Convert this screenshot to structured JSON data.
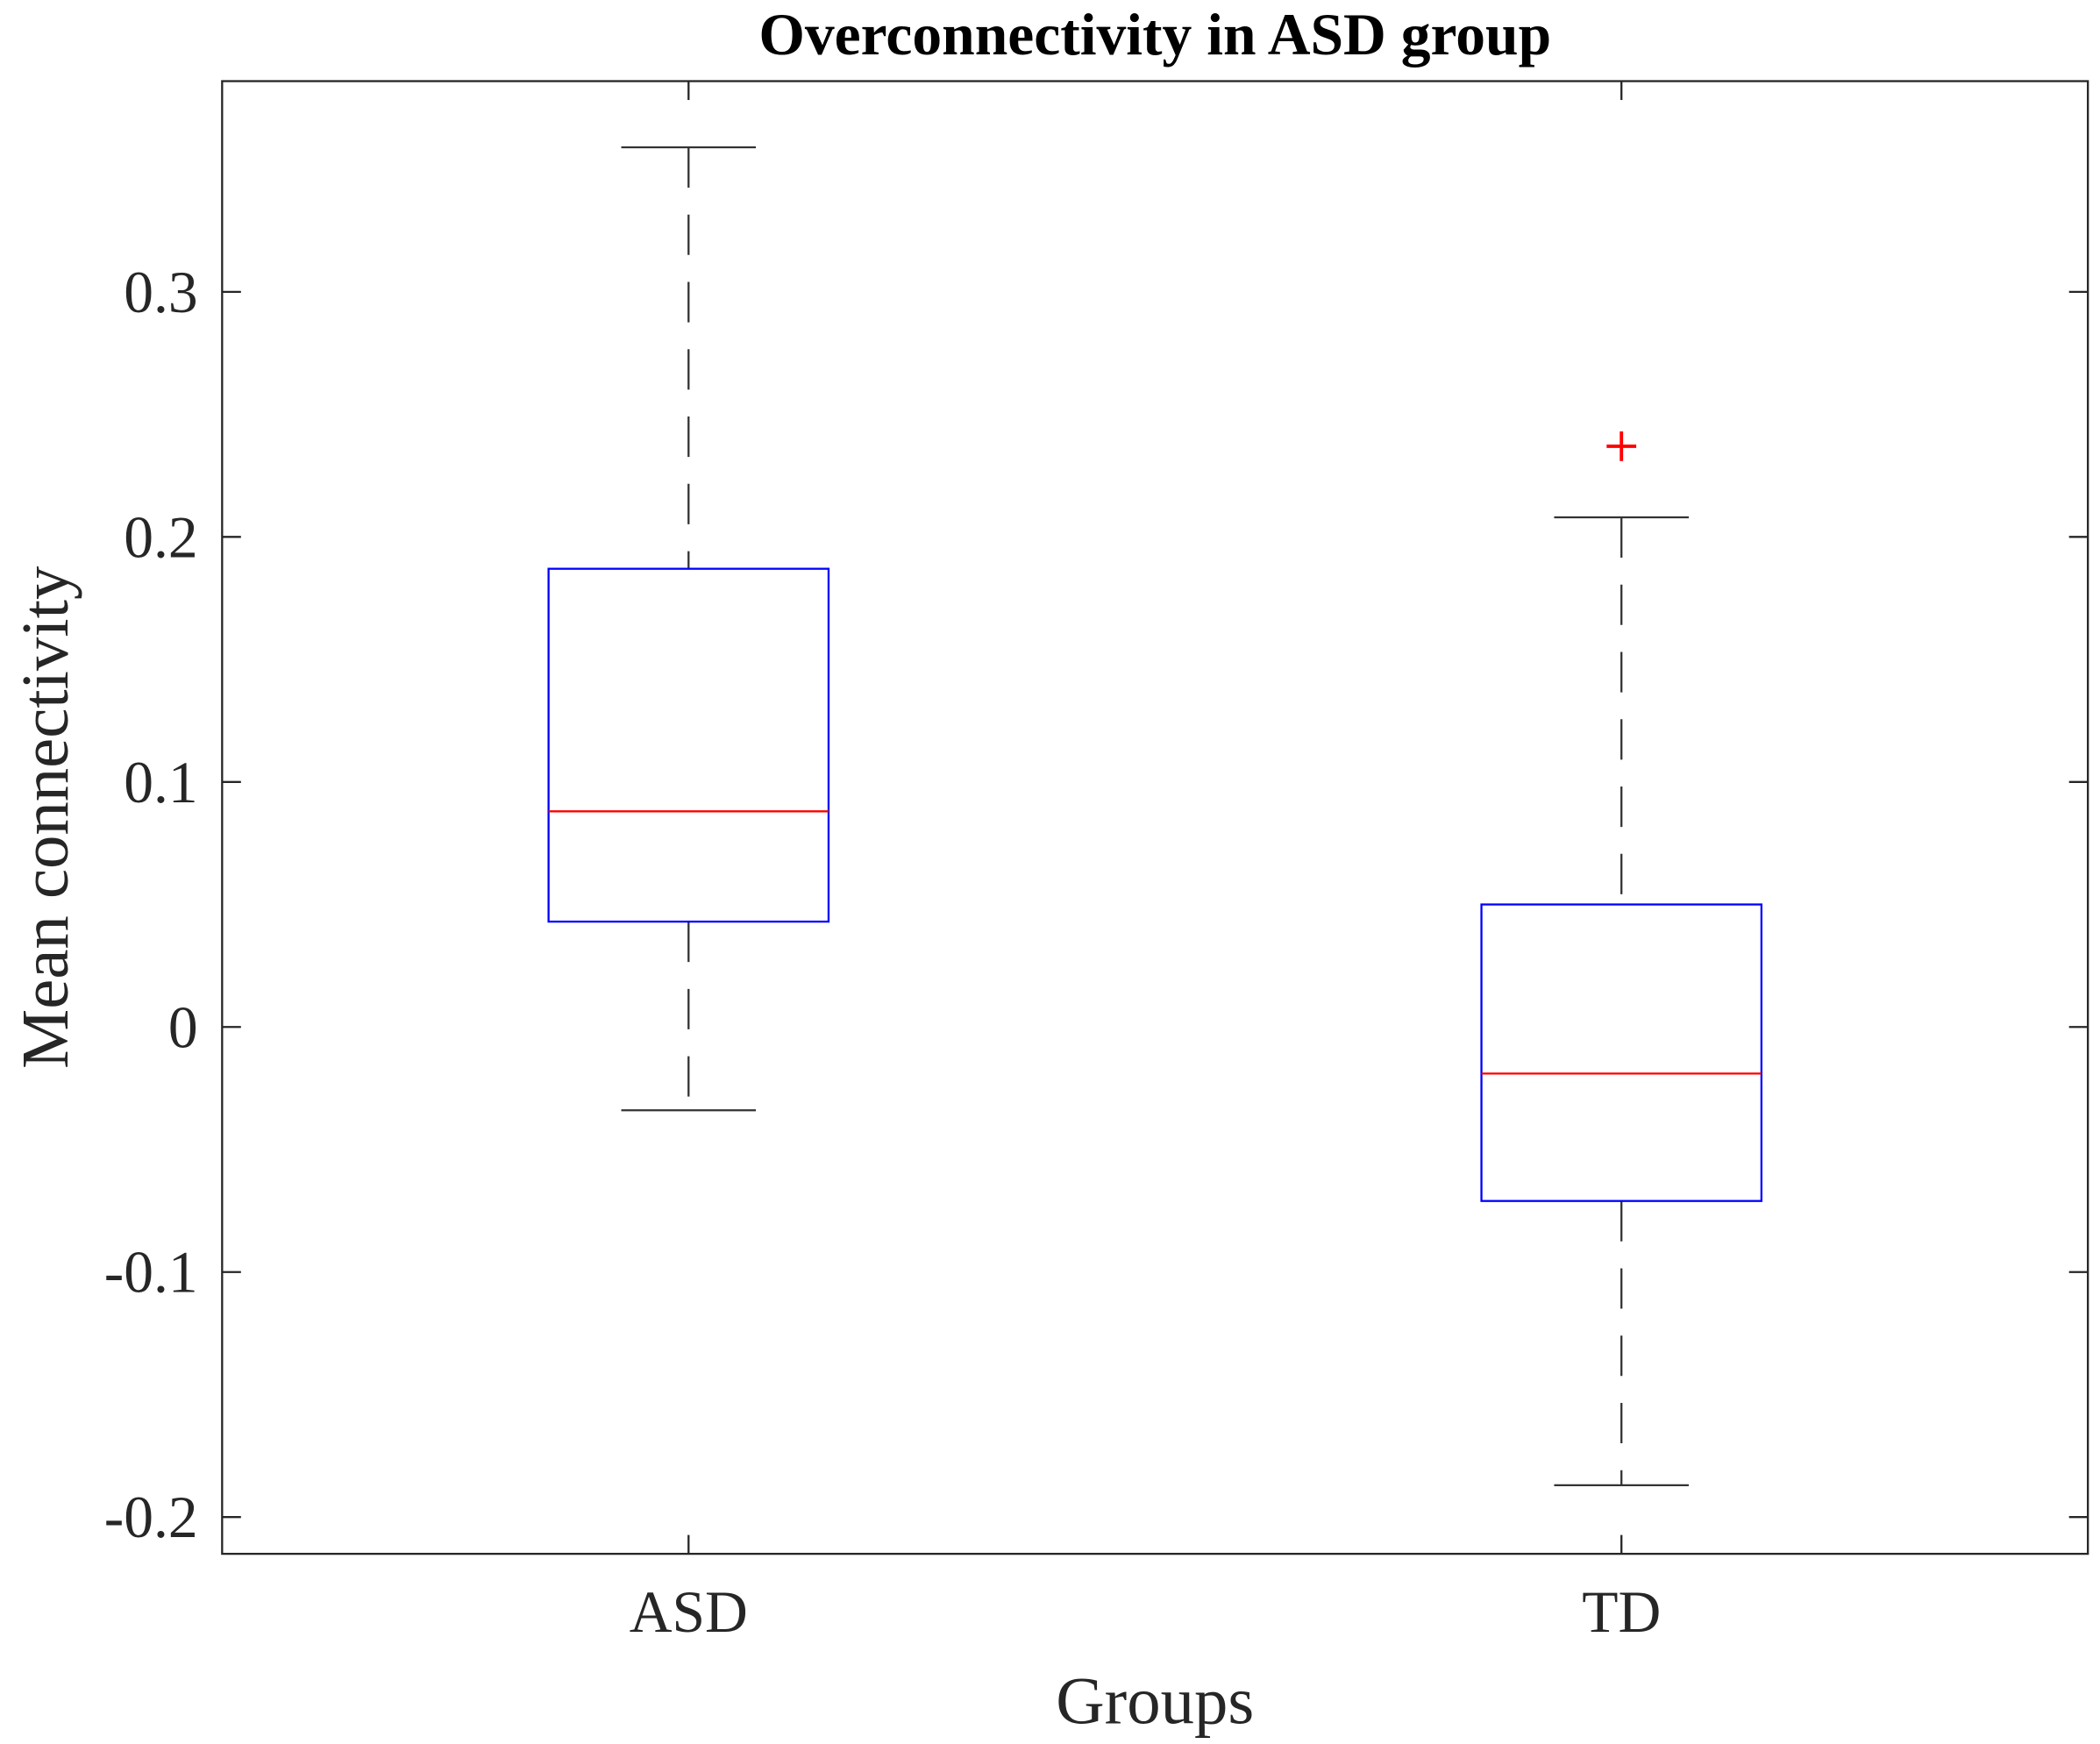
{
  "chart_data": {
    "type": "boxplot",
    "title": "Overconnectivity in ASD group",
    "xlabel": "Groups",
    "ylabel": "Mean connectivity",
    "categories": [
      "ASD",
      "TD"
    ],
    "ylim": [
      -0.215,
      0.386
    ],
    "yticks": [
      -0.2,
      -0.1,
      0,
      0.1,
      0.2,
      0.3
    ],
    "ytick_labels": [
      "-0.2",
      "-0.1",
      "0",
      "0.1",
      "0.2",
      "0.3"
    ],
    "grid": false,
    "boxes": [
      {
        "category": "ASD",
        "whisker_low": -0.034,
        "q1": 0.043,
        "median": 0.088,
        "q3": 0.187,
        "whisker_high": 0.359,
        "outliers": []
      },
      {
        "category": "TD",
        "whisker_low": -0.187,
        "q1": -0.071,
        "median": -0.019,
        "q3": 0.05,
        "whisker_high": 0.208,
        "outliers": [
          0.237
        ]
      }
    ],
    "colors": {
      "box": "#0000ff",
      "median": "#ff0000",
      "whisker": "#000000",
      "outlier": "#ff0000"
    }
  }
}
